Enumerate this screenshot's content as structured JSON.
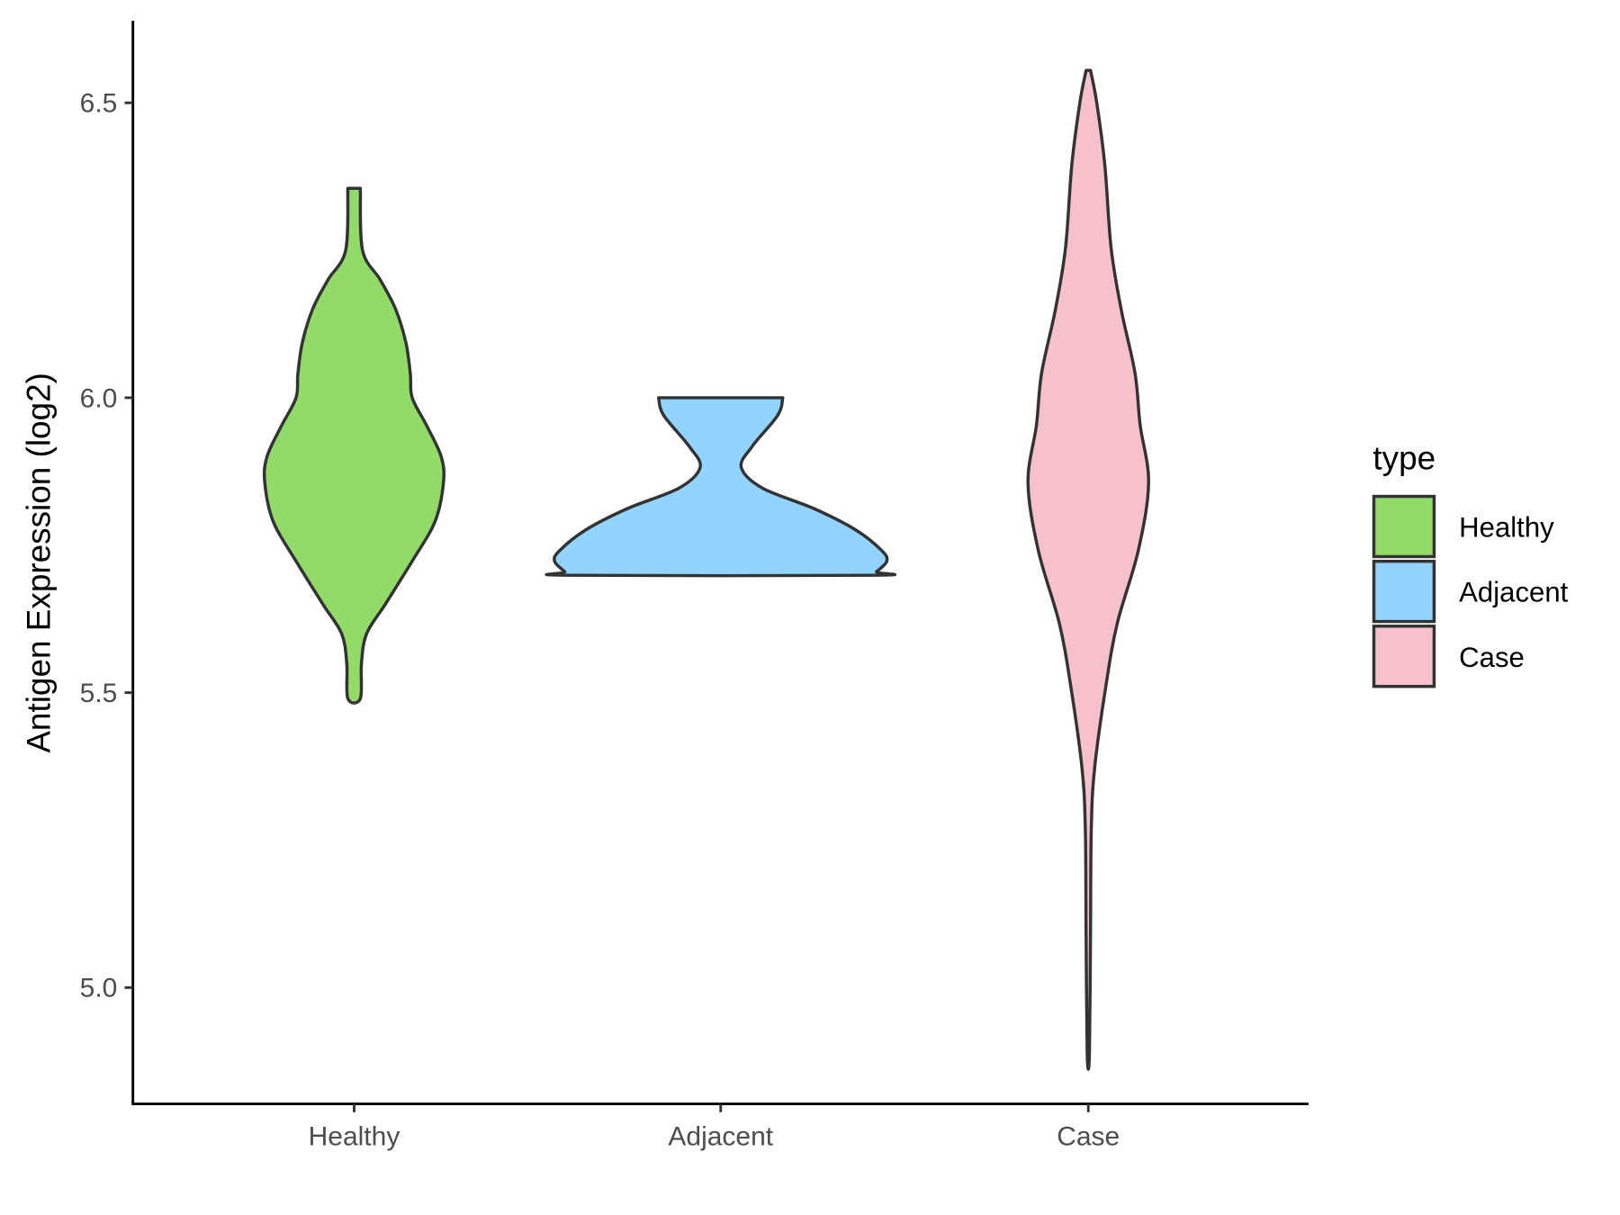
{
  "chart_data": {
    "type": "violin",
    "title": "",
    "xlabel": "",
    "ylabel": "Antigen Expression (log2)",
    "ylim": [
      4.803,
      6.639
    ],
    "yticks": [
      5.0,
      5.5,
      6.0,
      6.5
    ],
    "ytick_labels": [
      "5.0",
      "5.5",
      "6.0",
      "6.5"
    ],
    "categories": [
      "Healthy",
      "Adjacent",
      "Case"
    ],
    "grid": false,
    "legend": {
      "title": "type",
      "position": "right",
      "entries": [
        "Healthy",
        "Adjacent",
        "Case"
      ]
    },
    "series": [
      {
        "name": "Healthy",
        "color": "#93DB69",
        "profile_value_halfwidth": [
          [
            6.355,
            0.017
          ],
          [
            6.25,
            0.023
          ],
          [
            6.2,
            0.071
          ],
          [
            6.15,
            0.113
          ],
          [
            6.093,
            0.141
          ],
          [
            6.04,
            0.153
          ],
          [
            6.0,
            0.158
          ],
          [
            5.952,
            0.198
          ],
          [
            5.9,
            0.237
          ],
          [
            5.856,
            0.243
          ],
          [
            5.79,
            0.22
          ],
          [
            5.72,
            0.155
          ],
          [
            5.65,
            0.085
          ],
          [
            5.6,
            0.034
          ],
          [
            5.55,
            0.02
          ],
          [
            5.49,
            0.017
          ]
        ]
      },
      {
        "name": "Adjacent",
        "color": "#92D3FF",
        "profile_value_halfwidth": [
          [
            6.0,
            0.169
          ],
          [
            5.97,
            0.155
          ],
          [
            5.917,
            0.085
          ],
          [
            5.882,
            0.056
          ],
          [
            5.847,
            0.113
          ],
          [
            5.812,
            0.254
          ],
          [
            5.776,
            0.367
          ],
          [
            5.741,
            0.438
          ],
          [
            5.723,
            0.452
          ],
          [
            5.705,
            0.424
          ],
          [
            5.699,
            0.41
          ]
        ]
      },
      {
        "name": "Case",
        "color": "#F7C1CC",
        "profile_value_halfwidth": [
          [
            6.555,
            0.006
          ],
          [
            6.5,
            0.023
          ],
          [
            6.394,
            0.045
          ],
          [
            6.254,
            0.062
          ],
          [
            6.148,
            0.09
          ],
          [
            6.042,
            0.127
          ],
          [
            5.954,
            0.141
          ],
          [
            5.856,
            0.164
          ],
          [
            5.741,
            0.136
          ],
          [
            5.618,
            0.079
          ],
          [
            5.512,
            0.048
          ],
          [
            5.371,
            0.017
          ],
          [
            5.266,
            0.008
          ],
          [
            5.09,
            0.006
          ],
          [
            4.887,
            0.003
          ]
        ]
      }
    ]
  }
}
